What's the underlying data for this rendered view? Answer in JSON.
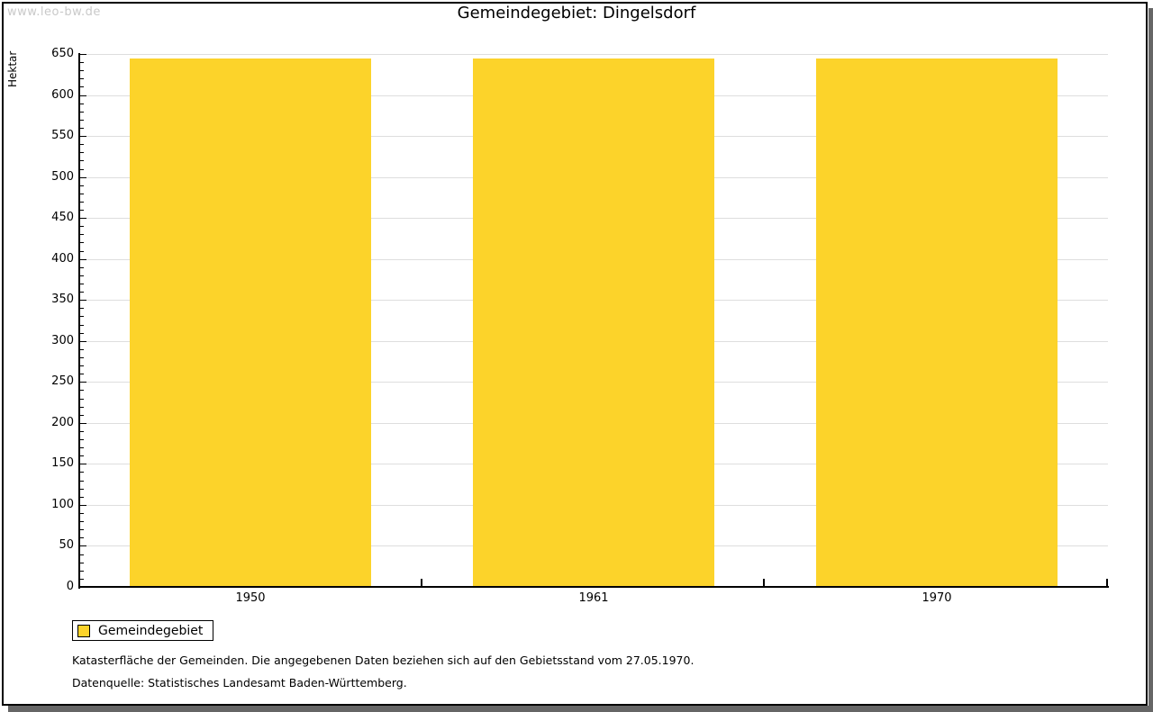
{
  "watermark": "www.leo-bw.de",
  "title": "Gemeindegebiet: Dingelsdorf",
  "chart_data": {
    "type": "bar",
    "title": "Gemeindegebiet: Dingelsdorf",
    "categories": [
      "1950",
      "1961",
      "1970"
    ],
    "series": [
      {
        "name": "Gemeindegebiet",
        "values": [
          645,
          645,
          645
        ]
      }
    ],
    "xlabel": "",
    "ylabel": "Hektar",
    "ylim": [
      0,
      650
    ],
    "y_major_step": 50,
    "y_minor_step": 10,
    "grid": true,
    "legend_position": "bottom-left"
  },
  "legend": {
    "items": [
      {
        "label": "Gemeindegebiet",
        "color": "#fcd32a"
      }
    ]
  },
  "footnotes": [
    "Katasterfläche der Gemeinden. Die angegebenen Daten beziehen sich auf den Gebietsstand vom 27.05.1970.",
    "Datenquelle: Statistisches Landesamt Baden-Württemberg."
  ],
  "colors": {
    "bar": "#fcd32a",
    "grid": "#dedede",
    "axis": "#000000",
    "watermark_text": "#c9c9c9",
    "frame_shadow": "#666666"
  }
}
